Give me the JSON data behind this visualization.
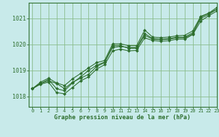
{
  "title": "Graphe pression niveau de la mer (hPa)",
  "bg_color": "#c8eaea",
  "line_color": "#2d6e2d",
  "grid_color": "#88bb88",
  "xlim": [
    -0.5,
    23
  ],
  "ylim": [
    1017.6,
    1021.6
  ],
  "yticks": [
    1018,
    1019,
    1020,
    1021
  ],
  "xticks": [
    0,
    1,
    2,
    3,
    4,
    5,
    6,
    7,
    8,
    9,
    10,
    11,
    12,
    13,
    14,
    15,
    16,
    17,
    18,
    19,
    20,
    21,
    22,
    23
  ],
  "series": [
    [
      1018.3,
      1018.5,
      1018.6,
      1018.5,
      1018.3,
      1018.55,
      1018.7,
      1018.85,
      1019.15,
      1019.3,
      1019.95,
      1019.95,
      1019.85,
      1019.85,
      1020.35,
      1020.2,
      1020.18,
      1020.2,
      1020.25,
      1020.25,
      1020.4,
      1021.05,
      1021.2,
      1021.35
    ],
    [
      1018.3,
      1018.47,
      1018.55,
      1018.15,
      1018.1,
      1018.35,
      1018.6,
      1018.75,
      1019.05,
      1019.22,
      1019.75,
      1019.82,
      1019.75,
      1019.77,
      1020.25,
      1020.15,
      1020.12,
      1020.14,
      1020.2,
      1020.2,
      1020.38,
      1020.9,
      1021.1,
      1021.28
    ],
    [
      1018.3,
      1018.5,
      1018.65,
      1018.3,
      1018.22,
      1018.52,
      1018.75,
      1019.0,
      1019.2,
      1019.32,
      1019.88,
      1019.92,
      1019.88,
      1019.88,
      1020.42,
      1020.22,
      1020.2,
      1020.22,
      1020.28,
      1020.28,
      1020.45,
      1021.0,
      1021.15,
      1021.35
    ],
    [
      1018.3,
      1018.55,
      1018.7,
      1018.52,
      1018.42,
      1018.68,
      1018.88,
      1019.1,
      1019.3,
      1019.38,
      1020.02,
      1020.02,
      1019.95,
      1019.95,
      1020.55,
      1020.28,
      1020.26,
      1020.28,
      1020.33,
      1020.35,
      1020.52,
      1021.08,
      1021.2,
      1021.42
    ]
  ]
}
